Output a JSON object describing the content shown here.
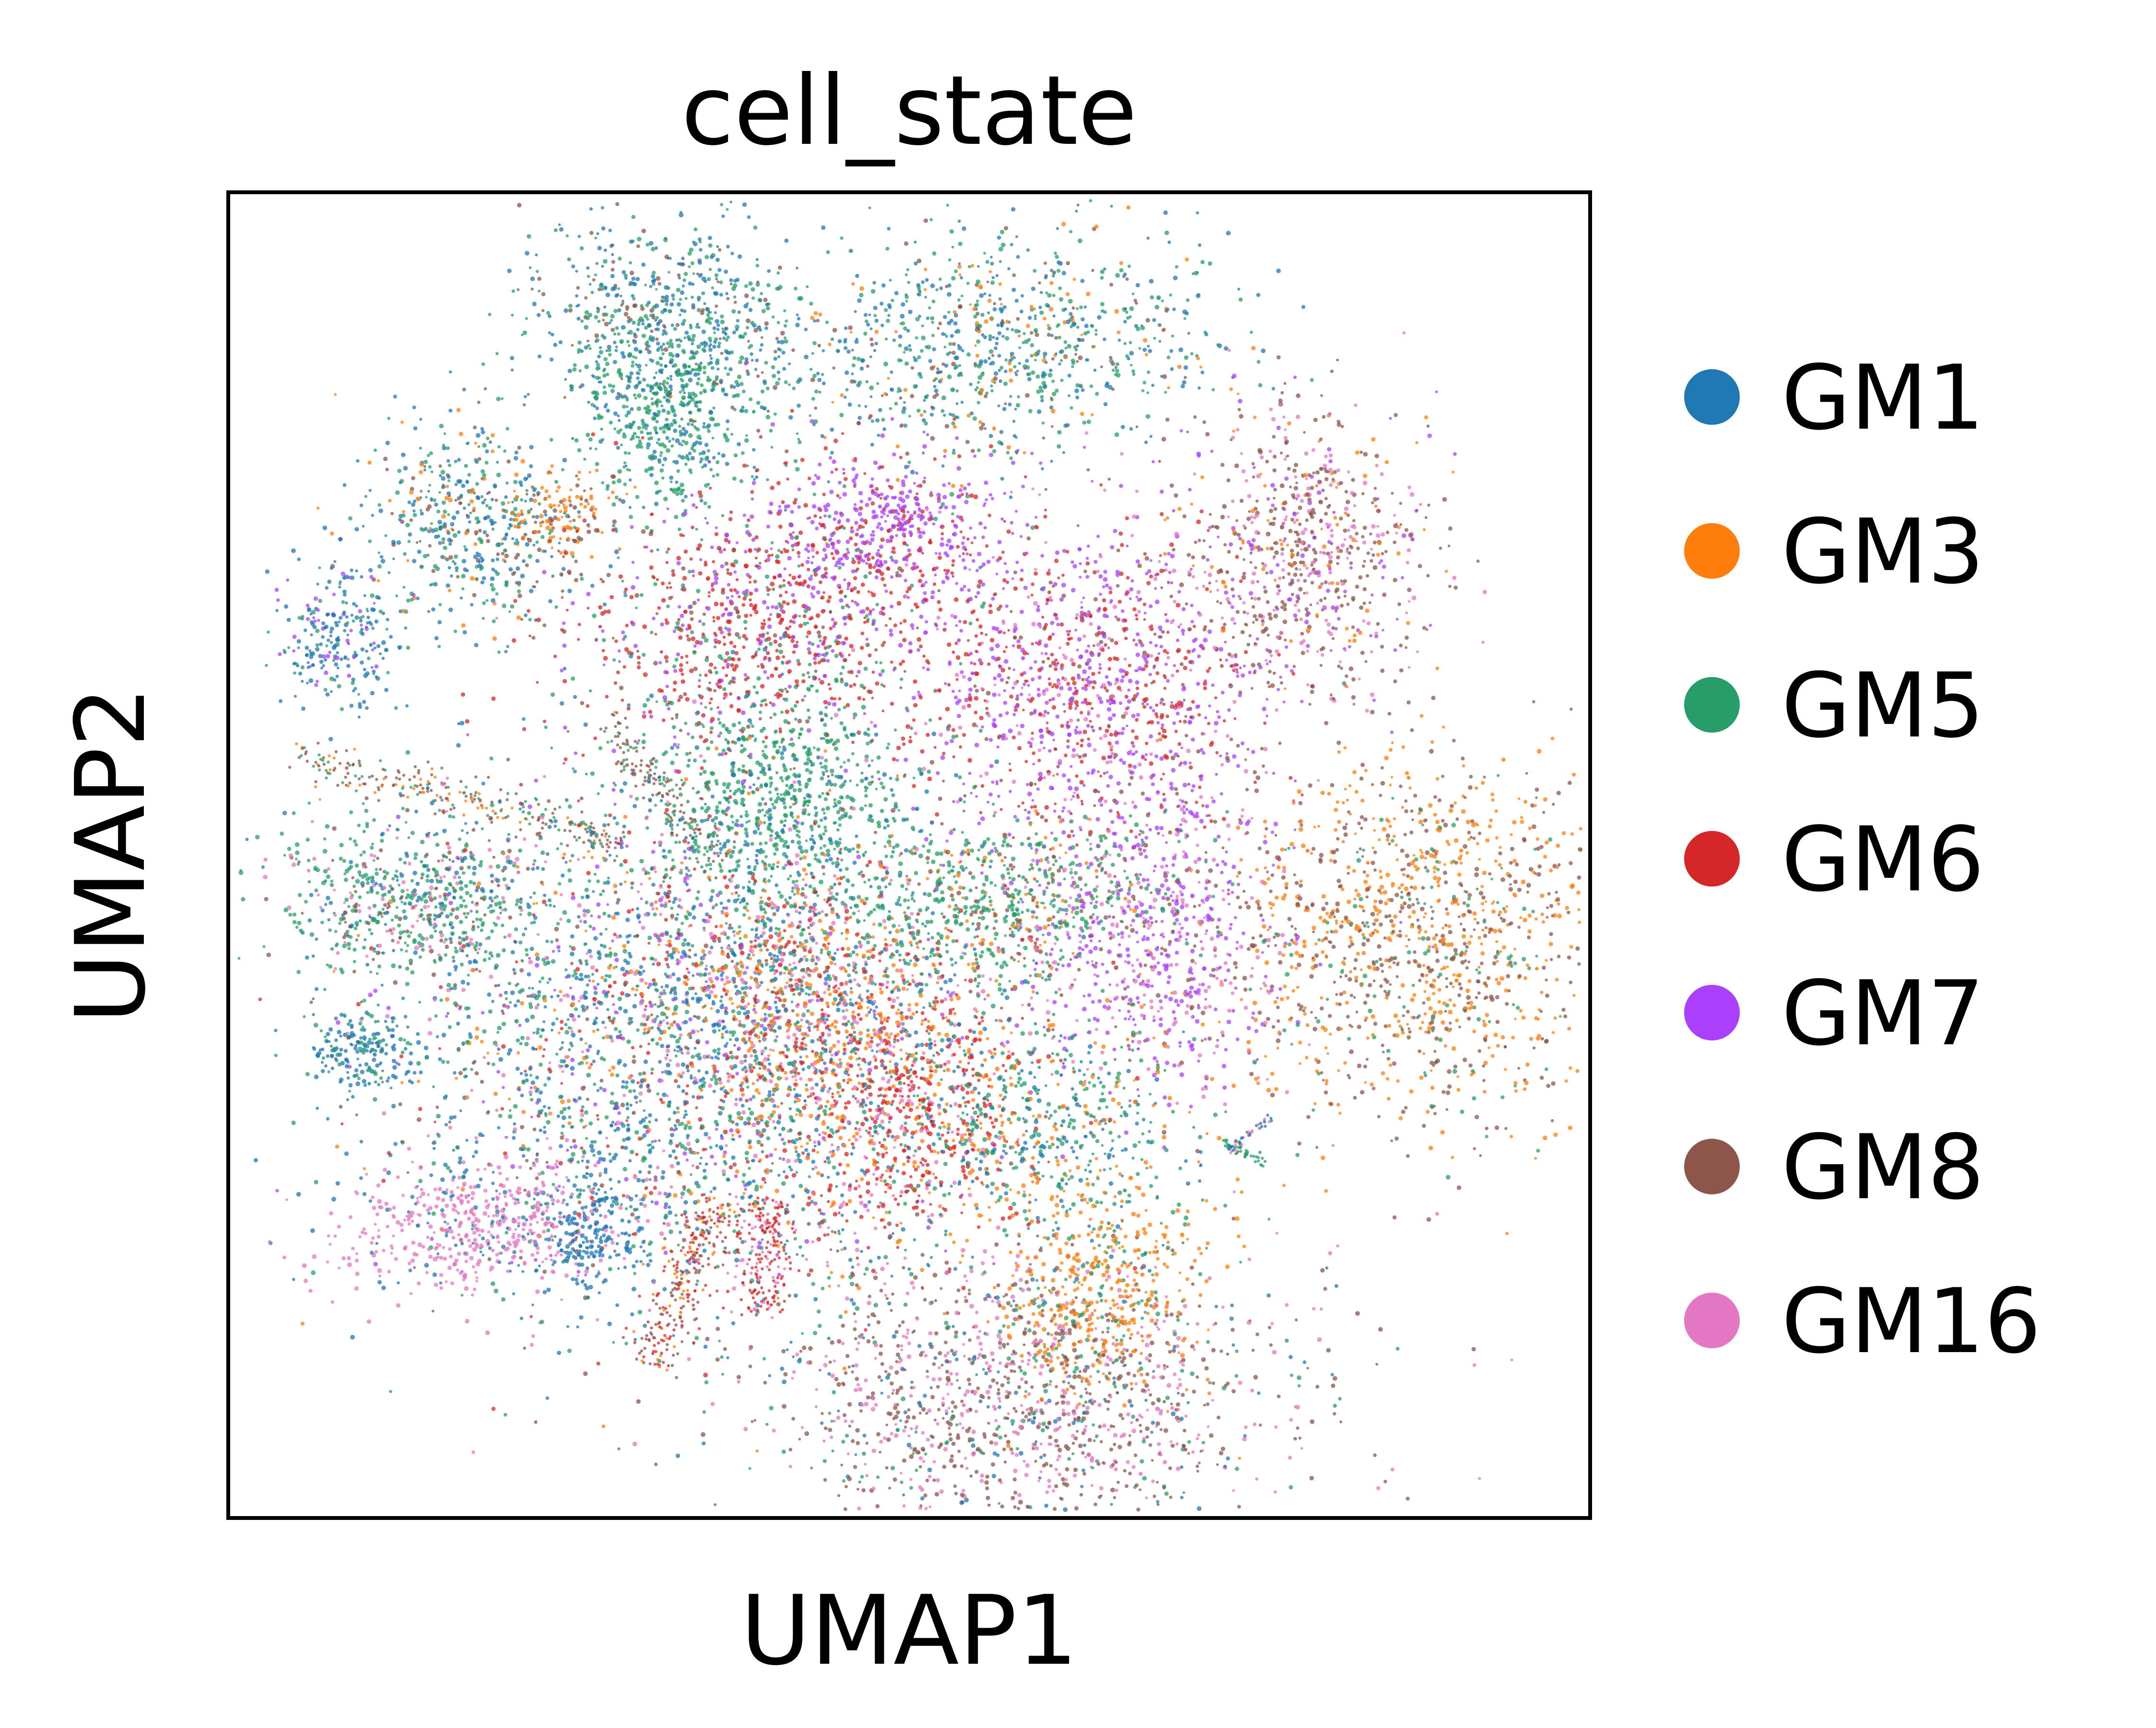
{
  "chart_data": {
    "type": "scatter",
    "title": "cell_state",
    "xlabel": "UMAP1",
    "ylabel": "UMAP2",
    "ticks": false,
    "grid": false,
    "legend_position": "right",
    "series": [
      {
        "name": "GM1",
        "color": "#1f77b4"
      },
      {
        "name": "GM3",
        "color": "#ff7f0e"
      },
      {
        "name": "GM5",
        "color": "#279e68"
      },
      {
        "name": "GM6",
        "color": "#d62728"
      },
      {
        "name": "GM7",
        "color": "#aa40fc"
      },
      {
        "name": "GM8",
        "color": "#8c564b"
      },
      {
        "name": "GM16",
        "color": "#e377c2"
      }
    ]
  }
}
